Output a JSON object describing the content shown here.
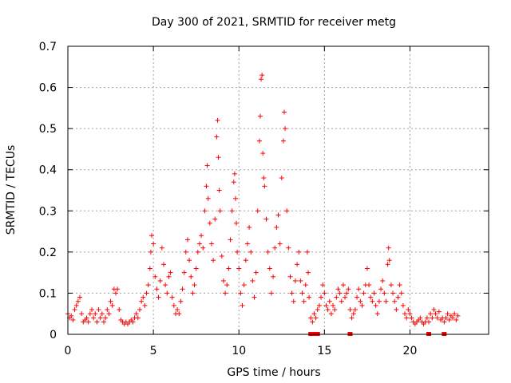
{
  "chart_data": {
    "type": "scatter",
    "title": "Day 300 of 2021, SRMTID for receiver metg",
    "xlabel": "GPS time / hours",
    "ylabel": "SRMTID / TECUs",
    "xlim": [
      0,
      24.6
    ],
    "ylim": [
      0,
      0.7
    ],
    "grid": true,
    "marker": "+",
    "marker_color": "#ff0000",
    "grid_color": "#a0a0a0",
    "x_ticks": [
      0,
      5,
      10,
      15,
      20
    ],
    "x_tick_labels": [
      "0",
      "5",
      "10",
      "15",
      "20"
    ],
    "y_ticks": [
      0,
      0.1,
      0.2,
      0.3,
      0.4,
      0.5,
      0.6,
      0.7
    ],
    "y_tick_labels": [
      "0",
      "0.1",
      "0.2",
      "0.3",
      "0.4",
      "0.5",
      "0.6",
      "0.7"
    ],
    "series": [
      {
        "name": "SRMTID",
        "points": [
          [
            0.0,
            0.05
          ],
          [
            0.1,
            0.04
          ],
          [
            0.2,
            0.045
          ],
          [
            0.3,
            0.035
          ],
          [
            0.4,
            0.06
          ],
          [
            0.5,
            0.07
          ],
          [
            0.6,
            0.08
          ],
          [
            0.7,
            0.09
          ],
          [
            0.8,
            0.05
          ],
          [
            0.9,
            0.03
          ],
          [
            1.0,
            0.035
          ],
          [
            1.1,
            0.04
          ],
          [
            1.2,
            0.03
          ],
          [
            1.3,
            0.05
          ],
          [
            1.4,
            0.06
          ],
          [
            1.5,
            0.04
          ],
          [
            1.6,
            0.05
          ],
          [
            1.7,
            0.03
          ],
          [
            1.8,
            0.06
          ],
          [
            1.9,
            0.04
          ],
          [
            2.0,
            0.05
          ],
          [
            2.1,
            0.03
          ],
          [
            2.2,
            0.04
          ],
          [
            2.3,
            0.06
          ],
          [
            2.4,
            0.05
          ],
          [
            2.5,
            0.08
          ],
          [
            2.6,
            0.07
          ],
          [
            2.7,
            0.11
          ],
          [
            2.8,
            0.1
          ],
          [
            2.9,
            0.11
          ],
          [
            3.0,
            0.06
          ],
          [
            3.1,
            0.035
          ],
          [
            3.2,
            0.03
          ],
          [
            3.3,
            0.025
          ],
          [
            3.4,
            0.03
          ],
          [
            3.5,
            0.025
          ],
          [
            3.6,
            0.03
          ],
          [
            3.7,
            0.035
          ],
          [
            3.8,
            0.03
          ],
          [
            3.9,
            0.04
          ],
          [
            4.0,
            0.05
          ],
          [
            4.1,
            0.04
          ],
          [
            4.2,
            0.06
          ],
          [
            4.3,
            0.08
          ],
          [
            4.4,
            0.09
          ],
          [
            4.5,
            0.07
          ],
          [
            4.6,
            0.1
          ],
          [
            4.7,
            0.12
          ],
          [
            4.8,
            0.16
          ],
          [
            4.85,
            0.2
          ],
          [
            4.9,
            0.24
          ],
          [
            5.0,
            0.22
          ],
          [
            5.1,
            0.14
          ],
          [
            5.2,
            0.11
          ],
          [
            5.3,
            0.09
          ],
          [
            5.4,
            0.13
          ],
          [
            5.5,
            0.21
          ],
          [
            5.6,
            0.17
          ],
          [
            5.7,
            0.12
          ],
          [
            5.8,
            0.1
          ],
          [
            5.9,
            0.14
          ],
          [
            6.0,
            0.15
          ],
          [
            6.1,
            0.09
          ],
          [
            6.2,
            0.07
          ],
          [
            6.3,
            0.05
          ],
          [
            6.4,
            0.06
          ],
          [
            6.5,
            0.05
          ],
          [
            6.6,
            0.08
          ],
          [
            6.7,
            0.11
          ],
          [
            6.8,
            0.15
          ],
          [
            6.9,
            0.2
          ],
          [
            7.0,
            0.23
          ],
          [
            7.1,
            0.18
          ],
          [
            7.2,
            0.14
          ],
          [
            7.3,
            0.1
          ],
          [
            7.4,
            0.12
          ],
          [
            7.5,
            0.16
          ],
          [
            7.6,
            0.2
          ],
          [
            7.7,
            0.22
          ],
          [
            7.8,
            0.24
          ],
          [
            7.9,
            0.21
          ],
          [
            8.0,
            0.3
          ],
          [
            8.1,
            0.36
          ],
          [
            8.15,
            0.41
          ],
          [
            8.2,
            0.33
          ],
          [
            8.3,
            0.27
          ],
          [
            8.4,
            0.22
          ],
          [
            8.5,
            0.18
          ],
          [
            8.6,
            0.28
          ],
          [
            8.7,
            0.48
          ],
          [
            8.75,
            0.52
          ],
          [
            8.8,
            0.43
          ],
          [
            8.85,
            0.35
          ],
          [
            8.9,
            0.3
          ],
          [
            9.0,
            0.19
          ],
          [
            9.1,
            0.13
          ],
          [
            9.2,
            0.1
          ],
          [
            9.3,
            0.12
          ],
          [
            9.4,
            0.16
          ],
          [
            9.5,
            0.23
          ],
          [
            9.6,
            0.3
          ],
          [
            9.7,
            0.37
          ],
          [
            9.75,
            0.39
          ],
          [
            9.8,
            0.33
          ],
          [
            9.85,
            0.27
          ],
          [
            9.9,
            0.2
          ],
          [
            10.0,
            0.16
          ],
          [
            10.1,
            0.1
          ],
          [
            10.2,
            0.07
          ],
          [
            10.3,
            0.12
          ],
          [
            10.4,
            0.18
          ],
          [
            10.5,
            0.22
          ],
          [
            10.6,
            0.26
          ],
          [
            10.7,
            0.2
          ],
          [
            10.8,
            0.13
          ],
          [
            10.9,
            0.09
          ],
          [
            11.0,
            0.15
          ],
          [
            11.1,
            0.3
          ],
          [
            11.2,
            0.47
          ],
          [
            11.25,
            0.53
          ],
          [
            11.3,
            0.62
          ],
          [
            11.35,
            0.63
          ],
          [
            11.4,
            0.44
          ],
          [
            11.45,
            0.38
          ],
          [
            11.5,
            0.36
          ],
          [
            11.6,
            0.28
          ],
          [
            11.7,
            0.2
          ],
          [
            11.8,
            0.16
          ],
          [
            11.9,
            0.1
          ],
          [
            12.0,
            0.14
          ],
          [
            12.1,
            0.21
          ],
          [
            12.2,
            0.26
          ],
          [
            12.3,
            0.29
          ],
          [
            12.4,
            0.22
          ],
          [
            12.5,
            0.38
          ],
          [
            12.6,
            0.47
          ],
          [
            12.65,
            0.54
          ],
          [
            12.7,
            0.5
          ],
          [
            12.8,
            0.3
          ],
          [
            12.9,
            0.21
          ],
          [
            13.0,
            0.14
          ],
          [
            13.1,
            0.1
          ],
          [
            13.2,
            0.08
          ],
          [
            13.3,
            0.13
          ],
          [
            13.4,
            0.17
          ],
          [
            13.5,
            0.2
          ],
          [
            13.6,
            0.13
          ],
          [
            13.7,
            0.1
          ],
          [
            13.8,
            0.08
          ],
          [
            13.9,
            0.12
          ],
          [
            14.0,
            0.2
          ],
          [
            14.05,
            0.15
          ],
          [
            14.1,
            0.09
          ],
          [
            14.2,
            0.04
          ],
          [
            14.3,
            0.03
          ],
          [
            14.4,
            0.05
          ],
          [
            14.5,
            0.04
          ],
          [
            14.6,
            0.06
          ],
          [
            14.7,
            0.07
          ],
          [
            14.8,
            0.09
          ],
          [
            14.9,
            0.12
          ],
          [
            15.0,
            0.1
          ],
          [
            15.1,
            0.07
          ],
          [
            15.2,
            0.06
          ],
          [
            15.3,
            0.08
          ],
          [
            15.4,
            0.05
          ],
          [
            15.5,
            0.07
          ],
          [
            15.6,
            0.06
          ],
          [
            15.7,
            0.09
          ],
          [
            15.8,
            0.11
          ],
          [
            15.9,
            0.1
          ],
          [
            16.0,
            0.08
          ],
          [
            16.1,
            0.12
          ],
          [
            16.2,
            0.09
          ],
          [
            16.3,
            0.1
          ],
          [
            16.4,
            0.11
          ],
          [
            16.5,
            0.06
          ],
          [
            16.6,
            0.04
          ],
          [
            16.7,
            0.05
          ],
          [
            16.8,
            0.06
          ],
          [
            16.9,
            0.09
          ],
          [
            17.0,
            0.11
          ],
          [
            17.1,
            0.08
          ],
          [
            17.2,
            0.07
          ],
          [
            17.3,
            0.1
          ],
          [
            17.4,
            0.12
          ],
          [
            17.5,
            0.16
          ],
          [
            17.6,
            0.12
          ],
          [
            17.7,
            0.09
          ],
          [
            17.8,
            0.08
          ],
          [
            17.9,
            0.1
          ],
          [
            18.0,
            0.07
          ],
          [
            18.1,
            0.05
          ],
          [
            18.2,
            0.08
          ],
          [
            18.3,
            0.11
          ],
          [
            18.4,
            0.13
          ],
          [
            18.5,
            0.1
          ],
          [
            18.6,
            0.08
          ],
          [
            18.7,
            0.17
          ],
          [
            18.75,
            0.21
          ],
          [
            18.8,
            0.18
          ],
          [
            18.9,
            0.12
          ],
          [
            19.0,
            0.1
          ],
          [
            19.1,
            0.08
          ],
          [
            19.2,
            0.06
          ],
          [
            19.3,
            0.09
          ],
          [
            19.4,
            0.12
          ],
          [
            19.5,
            0.1
          ],
          [
            19.6,
            0.07
          ],
          [
            19.7,
            0.05
          ],
          [
            19.8,
            0.04
          ],
          [
            19.9,
            0.06
          ],
          [
            20.0,
            0.05
          ],
          [
            20.1,
            0.04
          ],
          [
            20.2,
            0.03
          ],
          [
            20.3,
            0.025
          ],
          [
            20.4,
            0.03
          ],
          [
            20.5,
            0.035
          ],
          [
            20.6,
            0.04
          ],
          [
            20.7,
            0.03
          ],
          [
            20.8,
            0.025
          ],
          [
            20.9,
            0.03
          ],
          [
            21.0,
            0.04
          ],
          [
            21.1,
            0.03
          ],
          [
            21.2,
            0.05
          ],
          [
            21.3,
            0.04
          ],
          [
            21.4,
            0.06
          ],
          [
            21.5,
            0.05
          ],
          [
            21.6,
            0.04
          ],
          [
            21.7,
            0.055
          ],
          [
            21.8,
            0.035
          ],
          [
            21.9,
            0.04
          ],
          [
            22.0,
            0.03
          ],
          [
            22.1,
            0.04
          ],
          [
            22.2,
            0.05
          ],
          [
            22.3,
            0.035
          ],
          [
            22.4,
            0.045
          ],
          [
            22.5,
            0.04
          ],
          [
            22.6,
            0.05
          ],
          [
            22.7,
            0.035
          ],
          [
            22.8,
            0.045
          ]
        ]
      }
    ],
    "zero_markers": [
      14.2,
      14.3,
      14.4,
      14.6,
      16.5,
      21.1,
      22.0
    ]
  }
}
